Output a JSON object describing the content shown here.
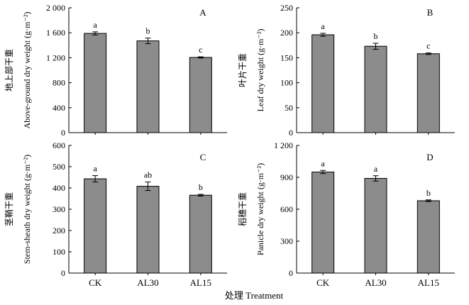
{
  "chart_data": [
    {
      "type": "bar",
      "panel": "A",
      "ylabel": "地上部干重",
      "ylabel_en": "Above-ground dry weight (g·m⁻²)",
      "ylim": [
        0,
        2000
      ],
      "yticks": [
        "0",
        "400",
        "800",
        "1 200",
        "1 600",
        "2 000"
      ],
      "categories": [
        "CK",
        "AL30",
        "AL15"
      ],
      "values": [
        1590,
        1470,
        1205
      ],
      "errors": [
        25,
        45,
        10
      ],
      "letters": [
        "a",
        "b",
        "c"
      ]
    },
    {
      "type": "bar",
      "panel": "B",
      "ylabel": "叶片干重",
      "ylabel_en": "Leaf dry weight (g·m⁻²)",
      "ylim": [
        0,
        250
      ],
      "yticks": [
        "0",
        "50",
        "100",
        "150",
        "200",
        "250"
      ],
      "categories": [
        "CK",
        "AL30",
        "AL15"
      ],
      "values": [
        196,
        173,
        158
      ],
      "errors": [
        3,
        6,
        1.5
      ],
      "letters": [
        "a",
        "b",
        "c"
      ]
    },
    {
      "type": "bar",
      "panel": "C",
      "ylabel": "茎鞘干重",
      "ylabel_en": "Stem-sheath dry weight (g·m⁻²)",
      "ylim": [
        0,
        600
      ],
      "yticks": [
        "0",
        "100",
        "200",
        "300",
        "400",
        "500",
        "600"
      ],
      "categories": [
        "CK",
        "AL30",
        "AL15"
      ],
      "values": [
        443,
        408,
        366
      ],
      "errors": [
        15,
        20,
        4
      ],
      "letters": [
        "a",
        "ab",
        "b"
      ]
    },
    {
      "type": "bar",
      "panel": "D",
      "ylabel": "稻穗干重",
      "ylabel_en": "Panicle dry weight (g·m⁻²)",
      "ylim": [
        0,
        1200
      ],
      "yticks": [
        "0",
        "300",
        "600",
        "900",
        "1 200"
      ],
      "categories": [
        "CK",
        "AL30",
        "AL15"
      ],
      "values": [
        950,
        890,
        680
      ],
      "errors": [
        15,
        25,
        8
      ],
      "letters": [
        "a",
        "a",
        "b"
      ]
    }
  ],
  "xlabel": "处理 Treatment",
  "colors": {
    "bar_fill": "#8c8c8c",
    "stroke": "#000000"
  }
}
